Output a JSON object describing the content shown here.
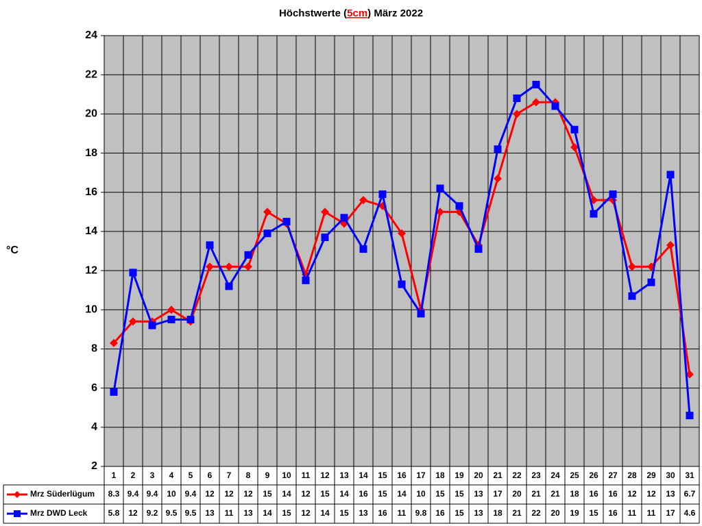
{
  "chart_data": {
    "type": "line",
    "title_parts": [
      "Höchstwerte (",
      "5cm",
      ") März 2022"
    ],
    "y_label": "°C",
    "categories": [
      "1",
      "2",
      "3",
      "4",
      "5",
      "6",
      "7",
      "8",
      "9",
      "10",
      "11",
      "12",
      "13",
      "14",
      "15",
      "16",
      "17",
      "18",
      "19",
      "20",
      "21",
      "22",
      "23",
      "24",
      "25",
      "26",
      "27",
      "28",
      "29",
      "30",
      "31"
    ],
    "series": [
      {
        "name": "Mrz Süderlügum",
        "color": "#ff0000",
        "marker": "diamond",
        "values": [
          8.3,
          9.4,
          9.4,
          10.0,
          9.4,
          12.2,
          12.2,
          12.2,
          15.0,
          14.4,
          11.8,
          15.0,
          14.4,
          15.6,
          15.3,
          13.9,
          10.0,
          15.0,
          15.0,
          13.3,
          16.7,
          20.0,
          20.6,
          20.6,
          18.3,
          15.6,
          15.6,
          12.2,
          12.2,
          13.3,
          6.7
        ],
        "value_labels": [
          "8.3",
          "9.4",
          "9.4",
          "10",
          "9.4",
          "12",
          "12",
          "12",
          "15",
          "14",
          "12",
          "15",
          "14",
          "16",
          "15",
          "14",
          "10",
          "15",
          "15",
          "13",
          "17",
          "20",
          "21",
          "21",
          "18",
          "16",
          "16",
          "12",
          "12",
          "13",
          "6.7"
        ]
      },
      {
        "name": "Mrz DWD Leck",
        "color": "#0000ff",
        "marker": "square",
        "values": [
          5.8,
          11.9,
          9.2,
          9.5,
          9.5,
          13.3,
          11.2,
          12.8,
          13.9,
          14.5,
          11.5,
          13.7,
          14.7,
          13.1,
          15.9,
          11.3,
          9.8,
          16.2,
          15.3,
          13.1,
          18.2,
          20.8,
          21.5,
          20.4,
          19.2,
          14.9,
          15.9,
          10.7,
          11.4,
          16.9,
          4.6
        ],
        "value_labels": [
          "5.8",
          "12",
          "9.2",
          "9.5",
          "9.5",
          "13",
          "11",
          "13",
          "14",
          "15",
          "12",
          "14",
          "15",
          "13",
          "16",
          "11",
          "9.8",
          "16",
          "15",
          "13",
          "18",
          "21",
          "22",
          "20",
          "19",
          "15",
          "16",
          "11",
          "11",
          "17",
          "4.6"
        ]
      }
    ],
    "ylim": [
      2,
      24
    ],
    "yticks": [
      2,
      4,
      6,
      8,
      10,
      12,
      14,
      16,
      18,
      20,
      22,
      24
    ],
    "grid": true
  }
}
